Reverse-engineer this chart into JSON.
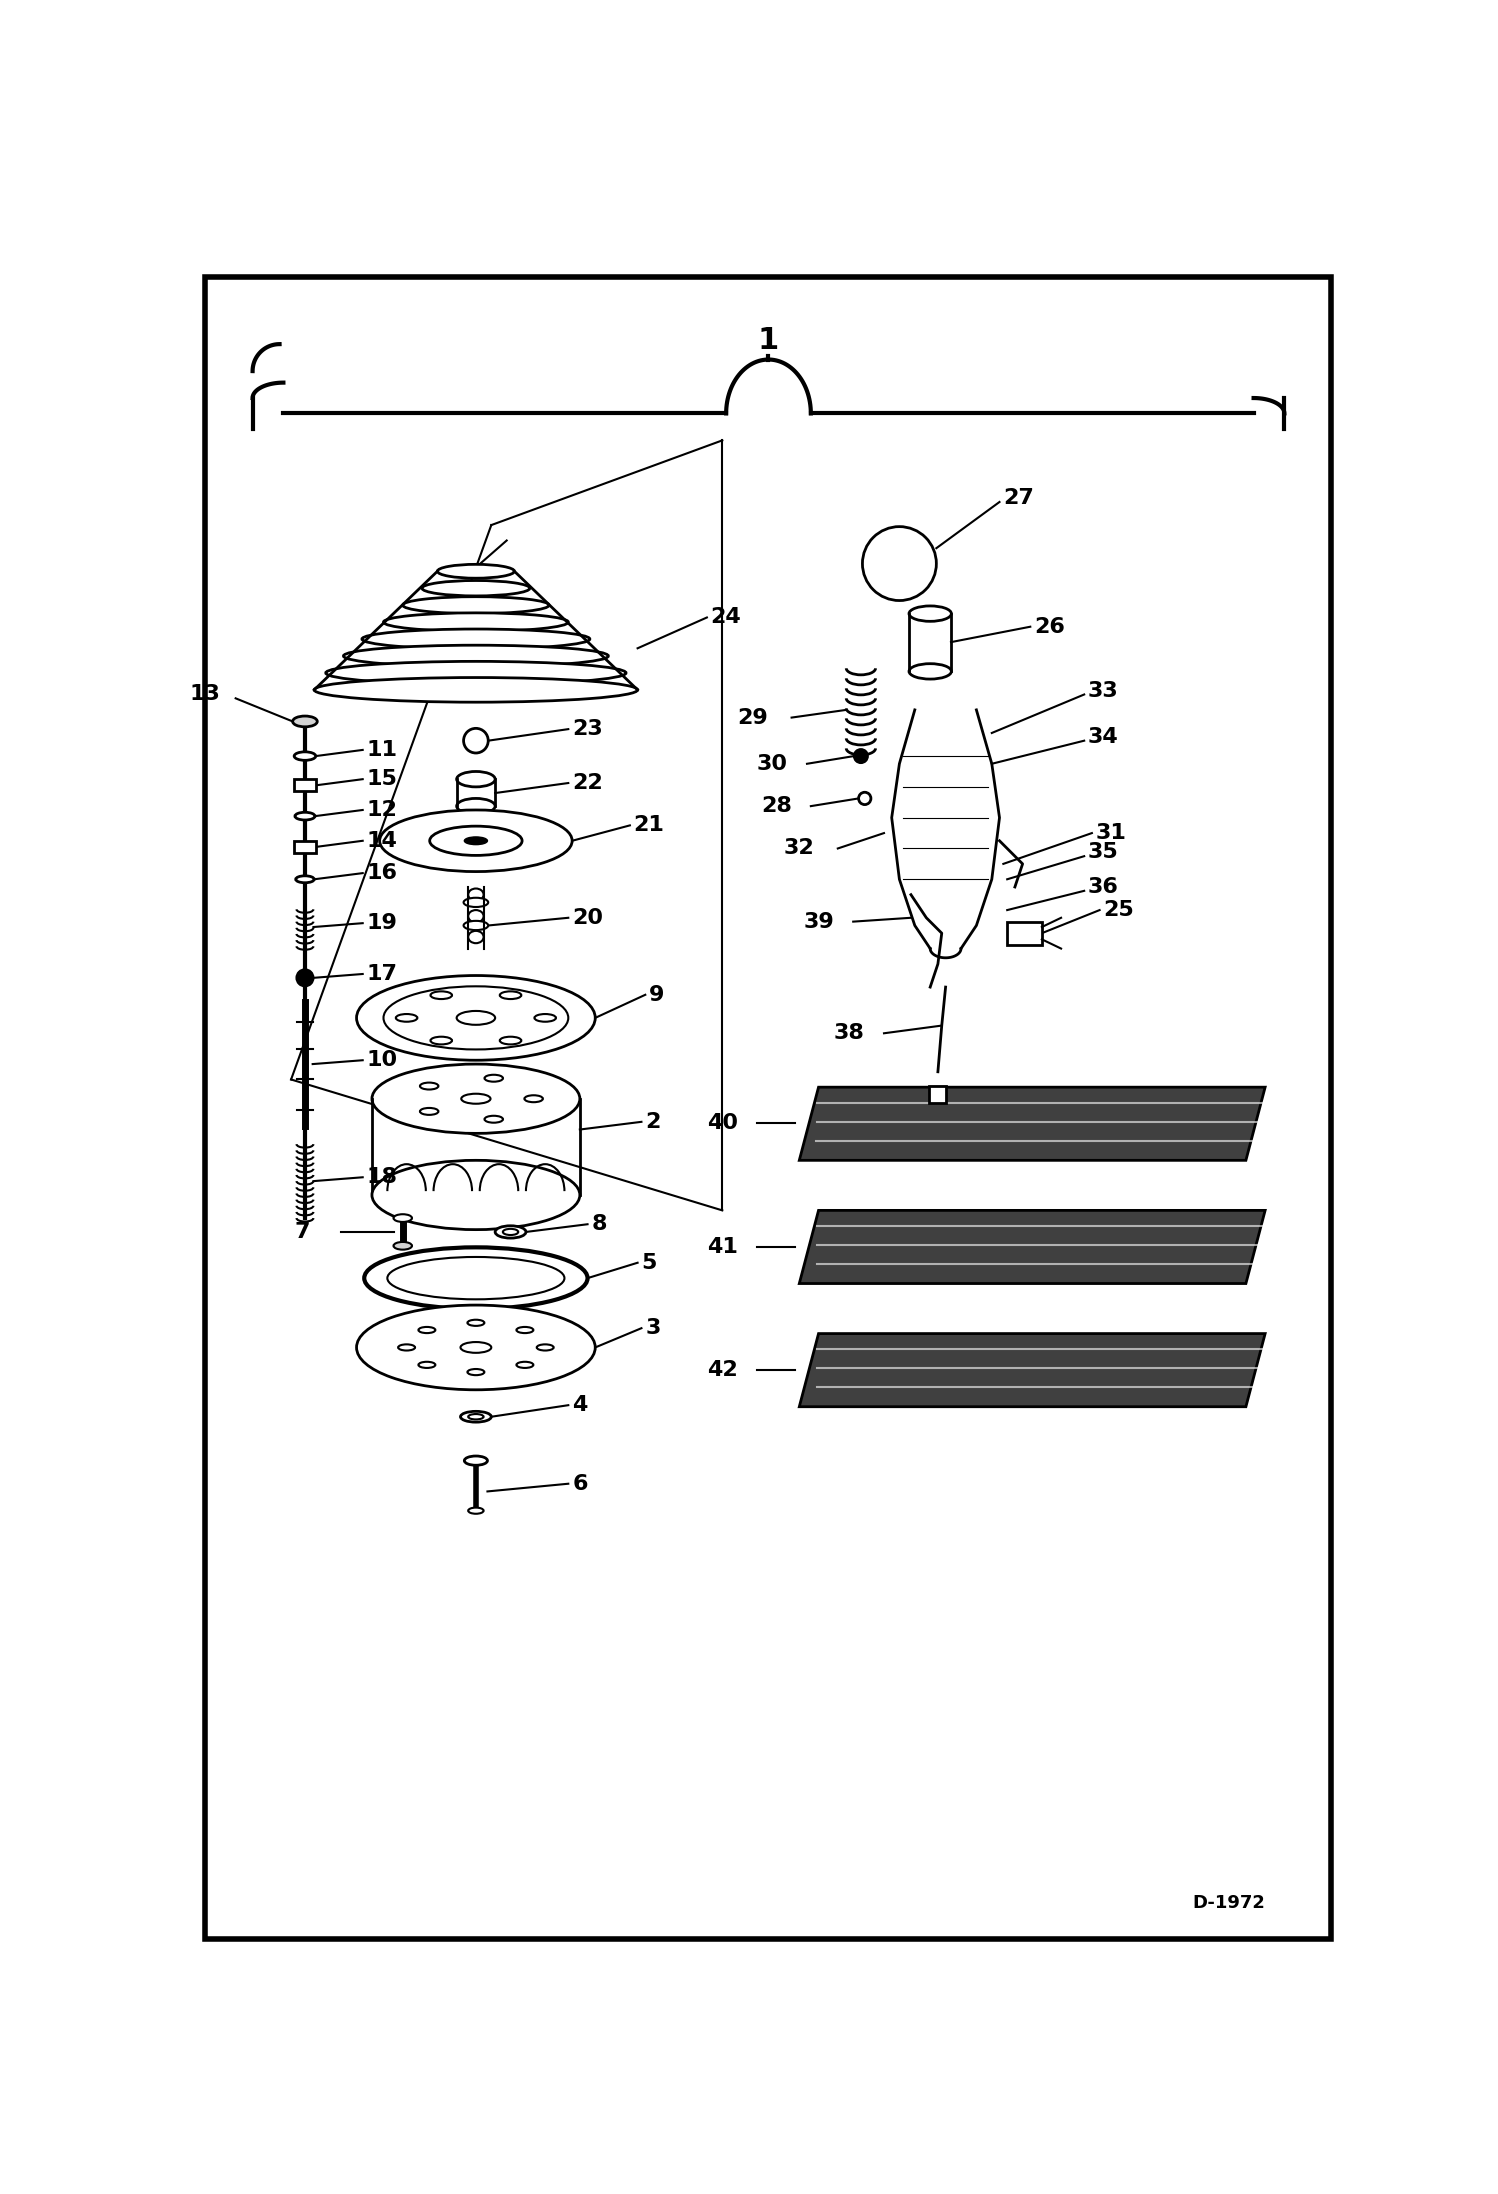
{
  "bg_color": "#ffffff",
  "border_color": "#000000",
  "fig_width": 14.98,
  "fig_height": 21.94,
  "dpi": 100,
  "watermark": "D-1972",
  "title": "1"
}
